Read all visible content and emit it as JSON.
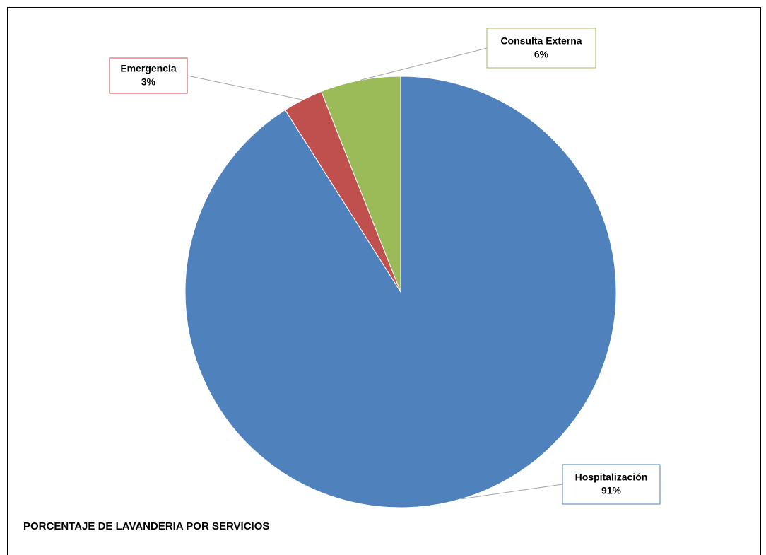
{
  "chart_data": {
    "type": "pie",
    "title": "PORCENTAJE DE LAVANDERIA POR SERVICIOS",
    "categories": [
      "Hospitalización",
      "Emergencia",
      "Consulta Externa"
    ],
    "values": [
      91,
      3,
      6
    ],
    "value_labels": [
      "91%",
      "3%",
      "6%"
    ],
    "colors": [
      "#4f81bd",
      "#c0504d",
      "#9bbb59"
    ]
  }
}
